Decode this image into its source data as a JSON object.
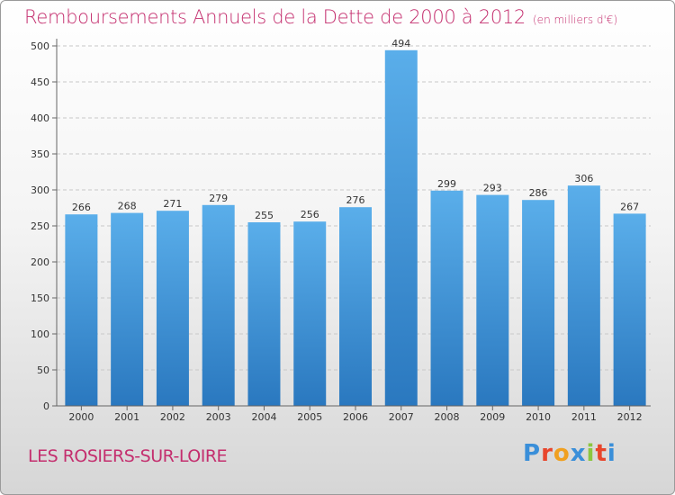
{
  "header": {
    "title": "Remboursements Annuels de la Dette de 2000 à 2012",
    "unit": "(en milliers d'€)"
  },
  "footer": {
    "commune": "LES ROSIERS-SUR-LOIRE",
    "logo_letters": [
      "P",
      "r",
      "o",
      "x",
      "i",
      "t",
      "i"
    ],
    "logo_colors": [
      "#3a8fd9",
      "#e8462c",
      "#f0a020",
      "#3a8fd9",
      "#8cc63f",
      "#e8462c",
      "#3a8fd9"
    ]
  },
  "colors": {
    "bar_top": "#5aaeea",
    "bar_bottom": "#2a78bf",
    "grid": "#c8c8c8",
    "title": "#c42e6e"
  },
  "chart_data": {
    "type": "bar",
    "categories": [
      "2000",
      "2001",
      "2002",
      "2003",
      "2004",
      "2005",
      "2006",
      "2007",
      "2008",
      "2009",
      "2010",
      "2011",
      "2012"
    ],
    "values": [
      266,
      268,
      271,
      279,
      255,
      256,
      276,
      494,
      299,
      293,
      286,
      306,
      267
    ],
    "yticks": [
      0,
      50,
      100,
      150,
      200,
      250,
      300,
      350,
      400,
      450,
      500
    ],
    "ylim": [
      0,
      500
    ],
    "grid": true
  }
}
